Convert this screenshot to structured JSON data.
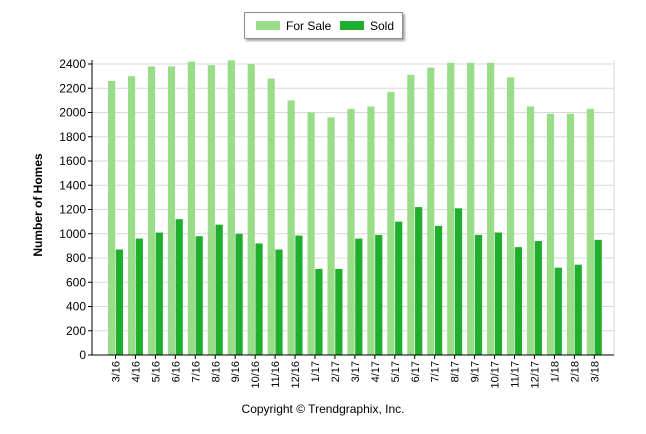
{
  "chart_data": {
    "type": "bar",
    "title": "",
    "xlabel": "",
    "ylabel": "Number of Homes",
    "ylim": [
      0,
      2400
    ],
    "yticks": [
      0,
      200,
      400,
      600,
      800,
      1000,
      1200,
      1400,
      1600,
      1800,
      2000,
      2200,
      2400
    ],
    "grid": "horizontal",
    "categories": [
      "3/16",
      "4/16",
      "5/16",
      "6/16",
      "7/16",
      "8/16",
      "9/16",
      "10/16",
      "11/16",
      "12/16",
      "1/17",
      "2/17",
      "3/17",
      "4/17",
      "5/17",
      "6/17",
      "7/17",
      "8/17",
      "9/17",
      "10/17",
      "11/17",
      "12/17",
      "1/18",
      "2/18",
      "3/18"
    ],
    "series": [
      {
        "name": "For Sale",
        "color": "#99dd88",
        "values": [
          2260,
          2300,
          2380,
          2380,
          2420,
          2390,
          2430,
          2400,
          2280,
          2100,
          2000,
          1960,
          2030,
          2050,
          2170,
          2310,
          2370,
          2410,
          2410,
          2410,
          2290,
          2050,
          1990,
          1990,
          2030
        ]
      },
      {
        "name": "Sold",
        "color": "#1fae2e",
        "values": [
          870,
          960,
          1010,
          1120,
          980,
          1075,
          1000,
          920,
          870,
          985,
          710,
          710,
          960,
          990,
          1100,
          1220,
          1065,
          1210,
          990,
          1010,
          890,
          940,
          720,
          745,
          950
        ]
      }
    ],
    "legend": "top-center",
    "copyright": "Copyright © Trendgraphix, Inc."
  }
}
